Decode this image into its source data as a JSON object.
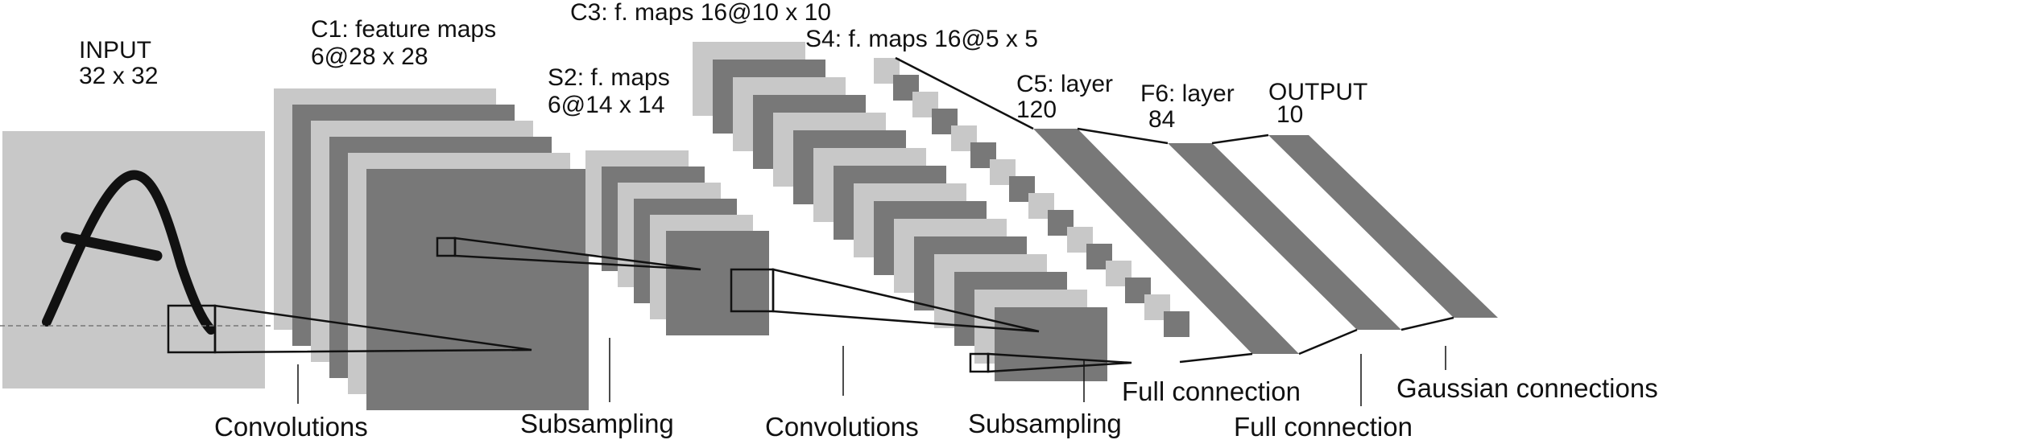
{
  "labels": {
    "input_title": "INPUT",
    "input_size": "32 x 32",
    "c1_title": "C1: feature maps",
    "c1_size": "6@28 x 28",
    "s2_title": "S2: f. maps",
    "s2_size": "6@14 x 14",
    "c3_title": "C3: f. maps 16@10 x 10",
    "s4_title": "S4: f. maps 16@5 x 5",
    "c5_title": "C5: layer",
    "c5_size": "120",
    "f6_title": "F6: layer",
    "f6_size": "84",
    "output_title": "OUTPUT",
    "output_size": "10"
  },
  "operations": {
    "conv1": "Convolutions",
    "sub1": "Subsampling",
    "conv2": "Convolutions",
    "sub2": "Subsampling",
    "full1": "Full connection",
    "full2": "Full connection",
    "gaussian": "Gaussian connections"
  },
  "colors": {
    "light_gray": "#c8c8c8",
    "dark_gray": "#787878",
    "stroke": "#111111",
    "text": "#111111"
  }
}
